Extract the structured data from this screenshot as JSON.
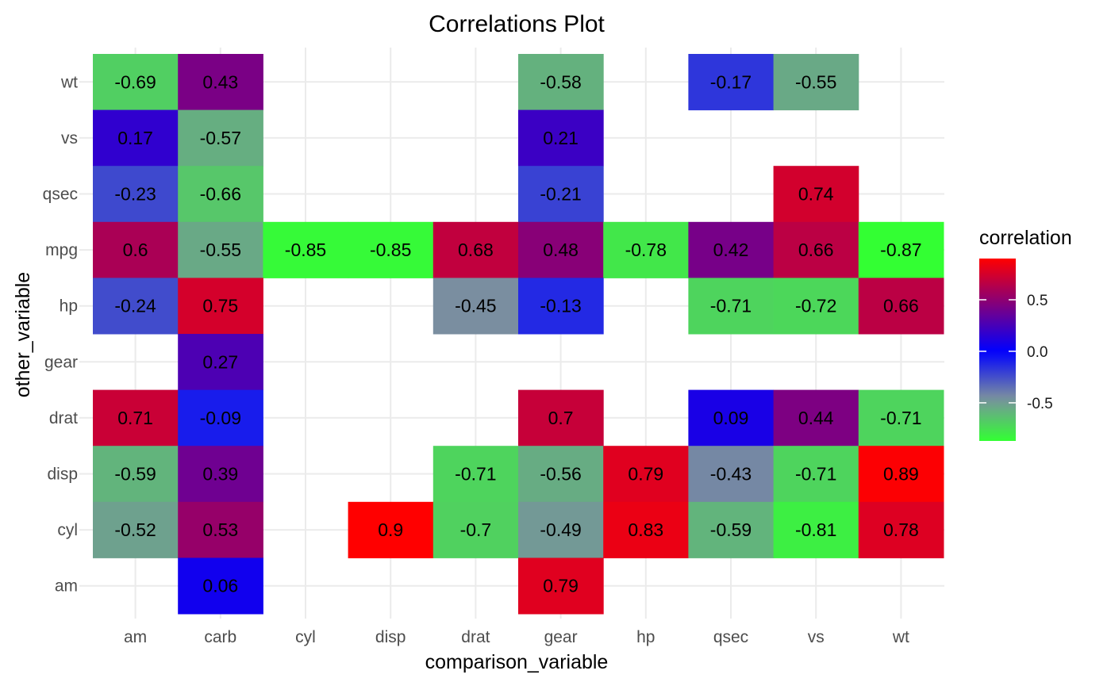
{
  "chart_data": {
    "type": "heatmap",
    "title": "Correlations Plot",
    "xlabel": "comparison_variable",
    "ylabel": "other_variable",
    "x_categories": [
      "am",
      "carb",
      "cyl",
      "disp",
      "drat",
      "gear",
      "hp",
      "qsec",
      "vs",
      "wt"
    ],
    "y_categories": [
      "am",
      "cyl",
      "disp",
      "drat",
      "gear",
      "hp",
      "mpg",
      "qsec",
      "vs",
      "wt"
    ],
    "cells": [
      {
        "x": "am",
        "y": "wt",
        "value": -0.69
      },
      {
        "x": "carb",
        "y": "wt",
        "value": 0.43
      },
      {
        "x": "gear",
        "y": "wt",
        "value": -0.58
      },
      {
        "x": "qsec",
        "y": "wt",
        "value": -0.17
      },
      {
        "x": "vs",
        "y": "wt",
        "value": -0.55
      },
      {
        "x": "am",
        "y": "vs",
        "value": 0.17
      },
      {
        "x": "carb",
        "y": "vs",
        "value": -0.57
      },
      {
        "x": "gear",
        "y": "vs",
        "value": 0.21
      },
      {
        "x": "am",
        "y": "qsec",
        "value": -0.23
      },
      {
        "x": "carb",
        "y": "qsec",
        "value": -0.66
      },
      {
        "x": "gear",
        "y": "qsec",
        "value": -0.21
      },
      {
        "x": "vs",
        "y": "qsec",
        "value": 0.74
      },
      {
        "x": "am",
        "y": "mpg",
        "value": 0.6
      },
      {
        "x": "carb",
        "y": "mpg",
        "value": -0.55
      },
      {
        "x": "cyl",
        "y": "mpg",
        "value": -0.85
      },
      {
        "x": "disp",
        "y": "mpg",
        "value": -0.85
      },
      {
        "x": "drat",
        "y": "mpg",
        "value": 0.68
      },
      {
        "x": "gear",
        "y": "mpg",
        "value": 0.48
      },
      {
        "x": "hp",
        "y": "mpg",
        "value": -0.78
      },
      {
        "x": "qsec",
        "y": "mpg",
        "value": 0.42
      },
      {
        "x": "vs",
        "y": "mpg",
        "value": 0.66
      },
      {
        "x": "wt",
        "y": "mpg",
        "value": -0.87
      },
      {
        "x": "am",
        "y": "hp",
        "value": -0.24
      },
      {
        "x": "carb",
        "y": "hp",
        "value": 0.75
      },
      {
        "x": "drat",
        "y": "hp",
        "value": -0.45
      },
      {
        "x": "gear",
        "y": "hp",
        "value": -0.13
      },
      {
        "x": "qsec",
        "y": "hp",
        "value": -0.71
      },
      {
        "x": "vs",
        "y": "hp",
        "value": -0.72
      },
      {
        "x": "wt",
        "y": "hp",
        "value": 0.66
      },
      {
        "x": "carb",
        "y": "gear",
        "value": 0.27
      },
      {
        "x": "am",
        "y": "drat",
        "value": 0.71
      },
      {
        "x": "carb",
        "y": "drat",
        "value": -0.09
      },
      {
        "x": "gear",
        "y": "drat",
        "value": 0.7
      },
      {
        "x": "qsec",
        "y": "drat",
        "value": 0.09
      },
      {
        "x": "vs",
        "y": "drat",
        "value": 0.44
      },
      {
        "x": "wt",
        "y": "drat",
        "value": -0.71
      },
      {
        "x": "am",
        "y": "disp",
        "value": -0.59
      },
      {
        "x": "carb",
        "y": "disp",
        "value": 0.39
      },
      {
        "x": "drat",
        "y": "disp",
        "value": -0.71
      },
      {
        "x": "gear",
        "y": "disp",
        "value": -0.56
      },
      {
        "x": "hp",
        "y": "disp",
        "value": 0.79
      },
      {
        "x": "qsec",
        "y": "disp",
        "value": -0.43
      },
      {
        "x": "vs",
        "y": "disp",
        "value": -0.71
      },
      {
        "x": "wt",
        "y": "disp",
        "value": 0.89
      },
      {
        "x": "am",
        "y": "cyl",
        "value": -0.52
      },
      {
        "x": "carb",
        "y": "cyl",
        "value": 0.53
      },
      {
        "x": "disp",
        "y": "cyl",
        "value": 0.9
      },
      {
        "x": "drat",
        "y": "cyl",
        "value": -0.7
      },
      {
        "x": "gear",
        "y": "cyl",
        "value": -0.49
      },
      {
        "x": "hp",
        "y": "cyl",
        "value": 0.83
      },
      {
        "x": "qsec",
        "y": "cyl",
        "value": -0.59
      },
      {
        "x": "vs",
        "y": "cyl",
        "value": -0.81
      },
      {
        "x": "wt",
        "y": "cyl",
        "value": 0.78
      },
      {
        "x": "carb",
        "y": "am",
        "value": 0.06
      },
      {
        "x": "gear",
        "y": "am",
        "value": 0.79
      }
    ],
    "legend": {
      "title": "correlation",
      "placement": "right",
      "range": [
        -0.87,
        0.9
      ],
      "ticks": [
        0.5,
        0.0,
        -0.5
      ],
      "tick_labels": [
        "0.5",
        "0.0",
        "-0.5"
      ]
    },
    "color_scale": {
      "low": "#33ff33",
      "mid_low": "#7a8ea0",
      "mid": "#0000ff",
      "high": "#ff0000"
    },
    "grid": true
  }
}
